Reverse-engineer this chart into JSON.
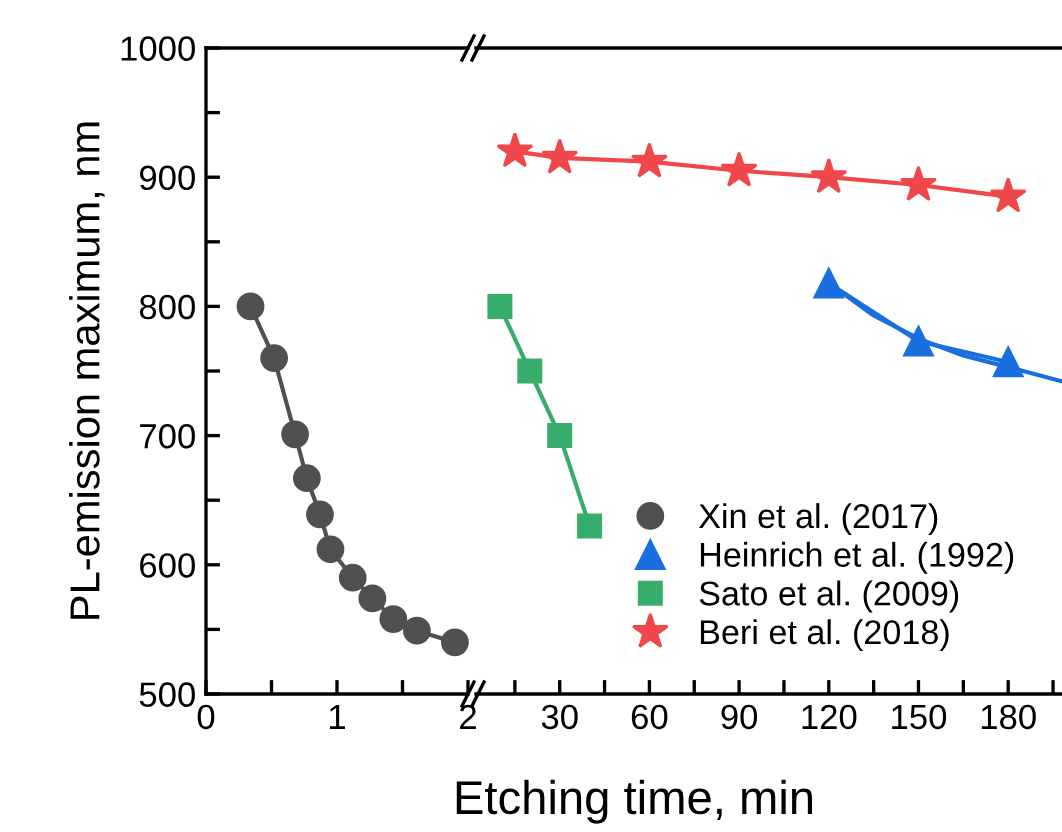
{
  "chart_data": [
    {
      "type": "line",
      "ylabel": "PL-emission maximum, nm",
      "xlim": [
        0,
        2
      ],
      "ylim": [
        500,
        1000
      ],
      "xticks": [
        0,
        {
          "value": 0.5,
          "label": null
        },
        1,
        {
          "value": 1.5,
          "label": null
        },
        2
      ],
      "yticks": [
        500,
        {
          "value": 550,
          "label": null
        },
        600,
        {
          "value": 650,
          "label": null
        },
        700,
        {
          "value": 750,
          "label": null
        },
        800,
        {
          "value": 850,
          "label": null
        },
        900,
        {
          "value": 950,
          "label": null
        },
        1000
      ],
      "grid": false,
      "legend": "bottom",
      "series": [
        {
          "name": "Xin et al. (2017)",
          "color": "#505050",
          "marker": "circle",
          "x": [
            0.34,
            0.52,
            0.68,
            0.77,
            0.87,
            0.95,
            1.12,
            1.27,
            1.43,
            1.61,
            1.9
          ],
          "values": [
            800,
            760,
            701,
            667,
            639,
            612,
            590,
            574,
            558,
            549,
            540
          ]
        }
      ]
    },
    {
      "type": "line",
      "xlabel": "Etching time, min",
      "xlim": [
        2,
        198
      ],
      "ylim": [
        500,
        1000
      ],
      "tick_labels": "x",
      "xticks": [
        {
          "value": 15,
          "label": null
        },
        30,
        {
          "value": 45,
          "label": null
        },
        60,
        {
          "value": 75,
          "label": null
        },
        90,
        {
          "value": 105,
          "label": null
        },
        120,
        {
          "value": 135,
          "label": null
        },
        150,
        {
          "value": 165,
          "label": null
        },
        180,
        {
          "value": 195,
          "label": null
        }
      ],
      "yticks": [
        500,
        600,
        700,
        800,
        900,
        1000
      ],
      "grid": false,
      "legend": "bottom",
      "series": [
        {
          "name": "Heinrich et al. (1992)",
          "color": "#1a6fdf",
          "marker": "triangle",
          "x": [
            120,
            150,
            180
          ],
          "values": [
            818,
            773,
            757
          ]
        },
        {
          "color": "#1a6fdf",
          "marker": "none",
          "x": [
            120,
            135,
            150,
            165,
            180,
            198
          ],
          "values": [
            818,
            793,
            775,
            762,
            753,
            742
          ]
        },
        {
          "name": "Sato et al. (2009)",
          "color": "#37ad6b",
          "marker": "square",
          "x": [
            10,
            20,
            30,
            40
          ],
          "values": [
            800,
            750,
            700,
            630
          ]
        },
        {
          "name": "Beri et al. (2018)",
          "color": "#f0484a",
          "marker": "star",
          "x": [
            15,
            30,
            60,
            90,
            120,
            150,
            180
          ],
          "values": [
            920,
            915,
            912,
            905,
            900,
            894,
            885
          ]
        }
      ]
    }
  ]
}
